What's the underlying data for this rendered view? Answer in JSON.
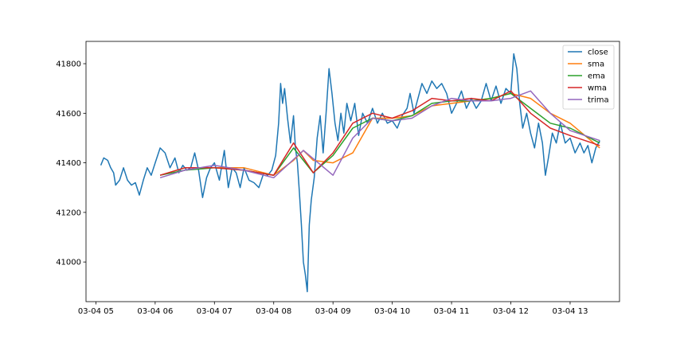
{
  "chart_data": {
    "type": "line",
    "title": "",
    "xlabel": "",
    "ylabel": "",
    "xlim": [
      "03-04 04:50",
      "03-04 13:50"
    ],
    "ylim": [
      40840,
      41890
    ],
    "x_ticks": [
      "03-04 05",
      "03-04 06",
      "03-04 07",
      "03-04 08",
      "03-04 09",
      "03-04 10",
      "03-04 11",
      "03-04 12",
      "03-04 13"
    ],
    "y_ticks": [
      41000,
      41200,
      41400,
      41600,
      41800
    ],
    "grid": false,
    "legend_position": "top-right",
    "series": [
      {
        "name": "close",
        "color": "#1f77b4",
        "points": [
          [
            "03-04 05:05",
            41390
          ],
          [
            "03-04 05:08",
            41420
          ],
          [
            "03-04 05:12",
            41410
          ],
          [
            "03-04 05:15",
            41380
          ],
          [
            "03-04 05:18",
            41360
          ],
          [
            "03-04 05:20",
            41310
          ],
          [
            "03-04 05:24",
            41330
          ],
          [
            "03-04 05:28",
            41380
          ],
          [
            "03-04 05:32",
            41330
          ],
          [
            "03-04 05:36",
            41310
          ],
          [
            "03-04 05:40",
            41320
          ],
          [
            "03-04 05:44",
            41270
          ],
          [
            "03-04 05:48",
            41330
          ],
          [
            "03-04 05:52",
            41380
          ],
          [
            "03-04 05:56",
            41350
          ],
          [
            "03-04 06:00",
            41400
          ],
          [
            "03-04 06:05",
            41460
          ],
          [
            "03-04 06:10",
            41440
          ],
          [
            "03-04 06:15",
            41380
          ],
          [
            "03-04 06:20",
            41420
          ],
          [
            "03-04 06:24",
            41360
          ],
          [
            "03-04 06:28",
            41390
          ],
          [
            "03-04 06:32",
            41370
          ],
          [
            "03-04 06:36",
            41380
          ],
          [
            "03-04 06:40",
            41440
          ],
          [
            "03-04 06:44",
            41370
          ],
          [
            "03-04 06:48",
            41260
          ],
          [
            "03-04 06:52",
            41340
          ],
          [
            "03-04 06:56",
            41380
          ],
          [
            "03-04 07:00",
            41400
          ],
          [
            "03-04 07:05",
            41330
          ],
          [
            "03-04 07:10",
            41450
          ],
          [
            "03-04 07:14",
            41300
          ],
          [
            "03-04 07:18",
            41380
          ],
          [
            "03-04 07:22",
            41360
          ],
          [
            "03-04 07:26",
            41300
          ],
          [
            "03-04 07:30",
            41380
          ],
          [
            "03-04 07:35",
            41330
          ],
          [
            "03-04 07:40",
            41320
          ],
          [
            "03-04 07:45",
            41300
          ],
          [
            "03-04 07:50",
            41360
          ],
          [
            "03-04 07:54",
            41350
          ],
          [
            "03-04 07:58",
            41370
          ],
          [
            "03-04 08:02",
            41430
          ],
          [
            "03-04 08:05",
            41560
          ],
          [
            "03-04 08:07",
            41720
          ],
          [
            "03-04 08:09",
            41640
          ],
          [
            "03-04 08:11",
            41700
          ],
          [
            "03-04 08:14",
            41580
          ],
          [
            "03-04 08:17",
            41480
          ],
          [
            "03-04 08:20",
            41590
          ],
          [
            "03-04 08:22",
            41460
          ],
          [
            "03-04 08:24",
            41400
          ],
          [
            "03-04 08:26",
            41280
          ],
          [
            "03-04 08:28",
            41150
          ],
          [
            "03-04 08:30",
            41000
          ],
          [
            "03-04 08:32",
            40950
          ],
          [
            "03-04 08:34",
            40880
          ],
          [
            "03-04 08:36",
            41150
          ],
          [
            "03-04 08:38",
            41250
          ],
          [
            "03-04 08:41",
            41340
          ],
          [
            "03-04 08:44",
            41500
          ],
          [
            "03-04 08:47",
            41590
          ],
          [
            "03-04 08:50",
            41440
          ],
          [
            "03-04 08:53",
            41600
          ],
          [
            "03-04 08:56",
            41780
          ],
          [
            "03-04 08:59",
            41680
          ],
          [
            "03-04 09:02",
            41560
          ],
          [
            "03-04 09:05",
            41490
          ],
          [
            "03-04 09:08",
            41600
          ],
          [
            "03-04 09:11",
            41520
          ],
          [
            "03-04 09:14",
            41640
          ],
          [
            "03-04 09:18",
            41570
          ],
          [
            "03-04 09:22",
            41640
          ],
          [
            "03-04 09:26",
            41510
          ],
          [
            "03-04 09:30",
            41600
          ],
          [
            "03-04 09:35",
            41560
          ],
          [
            "03-04 09:40",
            41620
          ],
          [
            "03-04 09:45",
            41560
          ],
          [
            "03-04 09:50",
            41600
          ],
          [
            "03-04 09:55",
            41560
          ],
          [
            "03-04 10:00",
            41570
          ],
          [
            "03-04 10:05",
            41540
          ],
          [
            "03-04 10:10",
            41590
          ],
          [
            "03-04 10:15",
            41620
          ],
          [
            "03-04 10:18",
            41680
          ],
          [
            "03-04 10:22",
            41600
          ],
          [
            "03-04 10:26",
            41660
          ],
          [
            "03-04 10:30",
            41720
          ],
          [
            "03-04 10:35",
            41680
          ],
          [
            "03-04 10:40",
            41730
          ],
          [
            "03-04 10:45",
            41700
          ],
          [
            "03-04 10:50",
            41720
          ],
          [
            "03-04 10:55",
            41680
          ],
          [
            "03-04 11:00",
            41600
          ],
          [
            "03-04 11:05",
            41640
          ],
          [
            "03-04 11:10",
            41690
          ],
          [
            "03-04 11:15",
            41620
          ],
          [
            "03-04 11:20",
            41660
          ],
          [
            "03-04 11:25",
            41620
          ],
          [
            "03-04 11:30",
            41650
          ],
          [
            "03-04 11:35",
            41720
          ],
          [
            "03-04 11:40",
            41650
          ],
          [
            "03-04 11:45",
            41710
          ],
          [
            "03-04 11:50",
            41640
          ],
          [
            "03-04 11:55",
            41700
          ],
          [
            "03-04 12:00",
            41680
          ],
          [
            "03-04 12:03",
            41840
          ],
          [
            "03-04 12:06",
            41780
          ],
          [
            "03-04 12:09",
            41640
          ],
          [
            "03-04 12:12",
            41540
          ],
          [
            "03-04 12:16",
            41600
          ],
          [
            "03-04 12:20",
            41520
          ],
          [
            "03-04 12:24",
            41460
          ],
          [
            "03-04 12:28",
            41560
          ],
          [
            "03-04 12:32",
            41480
          ],
          [
            "03-04 12:35",
            41350
          ],
          [
            "03-04 12:38",
            41420
          ],
          [
            "03-04 12:42",
            41520
          ],
          [
            "03-04 12:46",
            41480
          ],
          [
            "03-04 12:50",
            41560
          ],
          [
            "03-04 12:55",
            41480
          ],
          [
            "03-04 13:00",
            41500
          ],
          [
            "03-04 13:05",
            41440
          ],
          [
            "03-04 13:10",
            41480
          ],
          [
            "03-04 13:14",
            41440
          ],
          [
            "03-04 13:18",
            41470
          ],
          [
            "03-04 13:22",
            41400
          ],
          [
            "03-04 13:26",
            41460
          ],
          [
            "03-04 13:30",
            41490
          ]
        ]
      },
      {
        "name": "sma",
        "color": "#ff7f0e",
        "points": [
          [
            "03-04 06:05",
            41350
          ],
          [
            "03-04 06:30",
            41380
          ],
          [
            "03-04 07:00",
            41380
          ],
          [
            "03-04 07:30",
            41380
          ],
          [
            "03-04 08:00",
            41350
          ],
          [
            "03-04 08:20",
            41410
          ],
          [
            "03-04 08:30",
            41450
          ],
          [
            "03-04 08:40",
            41410
          ],
          [
            "03-04 09:00",
            41400
          ],
          [
            "03-04 09:20",
            41440
          ],
          [
            "03-04 09:40",
            41580
          ],
          [
            "03-04 10:00",
            41580
          ],
          [
            "03-04 10:20",
            41590
          ],
          [
            "03-04 10:40",
            41630
          ],
          [
            "03-04 11:00",
            41640
          ],
          [
            "03-04 11:20",
            41650
          ],
          [
            "03-04 11:40",
            41660
          ],
          [
            "03-04 12:00",
            41680
          ],
          [
            "03-04 12:20",
            41660
          ],
          [
            "03-04 12:40",
            41600
          ],
          [
            "03-04 13:00",
            41560
          ],
          [
            "03-04 13:30",
            41460
          ]
        ]
      },
      {
        "name": "ema",
        "color": "#2ca02c",
        "points": [
          [
            "03-04 06:05",
            41350
          ],
          [
            "03-04 06:30",
            41370
          ],
          [
            "03-04 07:00",
            41380
          ],
          [
            "03-04 07:30",
            41370
          ],
          [
            "03-04 08:00",
            41350
          ],
          [
            "03-04 08:20",
            41460
          ],
          [
            "03-04 08:40",
            41360
          ],
          [
            "03-04 09:00",
            41430
          ],
          [
            "03-04 09:20",
            41540
          ],
          [
            "03-04 09:40",
            41580
          ],
          [
            "03-04 10:00",
            41570
          ],
          [
            "03-04 10:20",
            41590
          ],
          [
            "03-04 10:40",
            41640
          ],
          [
            "03-04 11:00",
            41650
          ],
          [
            "03-04 11:20",
            41650
          ],
          [
            "03-04 11:40",
            41660
          ],
          [
            "03-04 12:00",
            41680
          ],
          [
            "03-04 12:20",
            41620
          ],
          [
            "03-04 12:40",
            41560
          ],
          [
            "03-04 13:00",
            41540
          ],
          [
            "03-04 13:30",
            41480
          ]
        ]
      },
      {
        "name": "wma",
        "color": "#d62728",
        "points": [
          [
            "03-04 06:05",
            41350
          ],
          [
            "03-04 06:30",
            41380
          ],
          [
            "03-04 07:00",
            41380
          ],
          [
            "03-04 07:30",
            41370
          ],
          [
            "03-04 08:00",
            41350
          ],
          [
            "03-04 08:20",
            41480
          ],
          [
            "03-04 08:40",
            41360
          ],
          [
            "03-04 09:00",
            41440
          ],
          [
            "03-04 09:20",
            41560
          ],
          [
            "03-04 09:40",
            41600
          ],
          [
            "03-04 10:00",
            41580
          ],
          [
            "03-04 10:20",
            41610
          ],
          [
            "03-04 10:40",
            41660
          ],
          [
            "03-04 11:00",
            41650
          ],
          [
            "03-04 11:20",
            41660
          ],
          [
            "03-04 11:40",
            41650
          ],
          [
            "03-04 12:00",
            41690
          ],
          [
            "03-04 12:20",
            41600
          ],
          [
            "03-04 12:40",
            41540
          ],
          [
            "03-04 13:00",
            41510
          ],
          [
            "03-04 13:30",
            41470
          ]
        ]
      },
      {
        "name": "trima",
        "color": "#9467bd",
        "points": [
          [
            "03-04 06:05",
            41340
          ],
          [
            "03-04 06:30",
            41370
          ],
          [
            "03-04 07:00",
            41390
          ],
          [
            "03-04 07:30",
            41370
          ],
          [
            "03-04 08:00",
            41340
          ],
          [
            "03-04 08:30",
            41450
          ],
          [
            "03-04 09:00",
            41350
          ],
          [
            "03-04 09:20",
            41500
          ],
          [
            "03-04 09:40",
            41580
          ],
          [
            "03-04 10:00",
            41570
          ],
          [
            "03-04 10:20",
            41580
          ],
          [
            "03-04 10:40",
            41630
          ],
          [
            "03-04 11:00",
            41660
          ],
          [
            "03-04 11:20",
            41650
          ],
          [
            "03-04 11:40",
            41650
          ],
          [
            "03-04 12:00",
            41660
          ],
          [
            "03-04 12:20",
            41690
          ],
          [
            "03-04 12:40",
            41600
          ],
          [
            "03-04 13:00",
            41530
          ],
          [
            "03-04 13:30",
            41490
          ]
        ]
      }
    ]
  }
}
